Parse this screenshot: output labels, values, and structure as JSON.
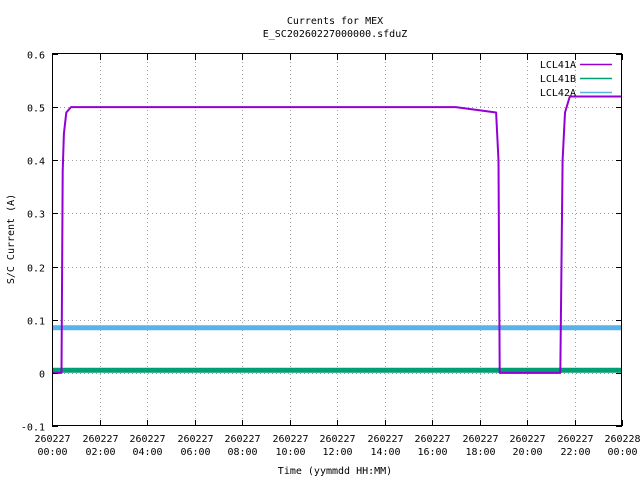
{
  "chart_data": {
    "type": "line",
    "title": "Currents for MEX",
    "subtitle": "E_SC20260227000000.sfduZ",
    "xlabel": "Time (yymmdd HH:MM)",
    "ylabel": "S/C Current (A)",
    "xlim": [
      0,
      24
    ],
    "ylim": [
      -0.1,
      0.6
    ],
    "yticks": [
      -0.1,
      0,
      0.1,
      0.2,
      0.3,
      0.4,
      0.5,
      0.6
    ],
    "ytick_labels": [
      "-0.1",
      "0",
      "0.1",
      "0.2",
      "0.3",
      "0.4",
      "0.5",
      "0.6"
    ],
    "xticks": [
      {
        "x": 0,
        "line1": "260227",
        "line2": "00:00"
      },
      {
        "x": 2,
        "line1": "260227",
        "line2": "02:00"
      },
      {
        "x": 4,
        "line1": "260227",
        "line2": "04:00"
      },
      {
        "x": 6,
        "line1": "260227",
        "line2": "06:00"
      },
      {
        "x": 8,
        "line1": "260227",
        "line2": "08:00"
      },
      {
        "x": 10,
        "line1": "260227",
        "line2": "10:00"
      },
      {
        "x": 12,
        "line1": "260227",
        "line2": "12:00"
      },
      {
        "x": 14,
        "line1": "260227",
        "line2": "14:00"
      },
      {
        "x": 16,
        "line1": "260227",
        "line2": "16:00"
      },
      {
        "x": 18,
        "line1": "260227",
        "line2": "18:00"
      },
      {
        "x": 20,
        "line1": "260227",
        "line2": "20:00"
      },
      {
        "x": 22,
        "line1": "260227",
        "line2": "22:00"
      },
      {
        "x": 24,
        "line1": "260228",
        "line2": "00:00"
      }
    ],
    "grid": true,
    "legend_position": "top-right",
    "series": [
      {
        "name": "LCL41A",
        "color": "#9400d3",
        "x": [
          0.0,
          0.4,
          0.45,
          0.5,
          0.6,
          0.8,
          1.2,
          3.0,
          5.0,
          7.0,
          9.0,
          11.0,
          13.0,
          15.0,
          17.0,
          18.7,
          18.8,
          18.85,
          19.0,
          21.4,
          21.5,
          21.6,
          21.8,
          22.5,
          24.0
        ],
        "y": [
          0.0,
          0.0,
          0.38,
          0.45,
          0.49,
          0.5,
          0.5,
          0.5,
          0.5,
          0.5,
          0.5,
          0.5,
          0.5,
          0.5,
          0.5,
          0.49,
          0.4,
          0.0,
          0.0,
          0.0,
          0.4,
          0.49,
          0.52,
          0.52,
          0.52
        ]
      },
      {
        "name": "LCL41B",
        "color": "#009e73",
        "x": [
          0.0,
          24.0
        ],
        "y": [
          0.005,
          0.005
        ]
      },
      {
        "name": "LCL42A",
        "color": "#56b4e9",
        "x": [
          0.0,
          24.0
        ],
        "y": [
          0.085,
          0.085
        ]
      }
    ]
  }
}
